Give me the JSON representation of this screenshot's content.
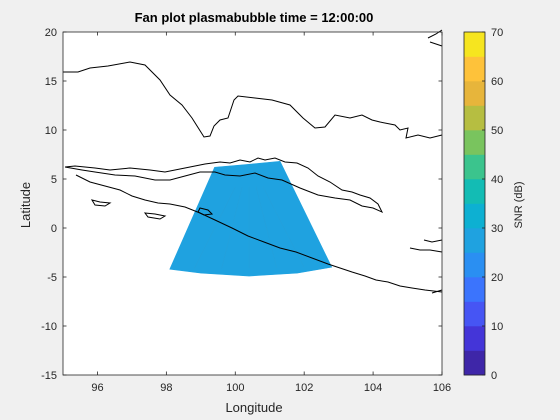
{
  "chart_data": {
    "type": "heatmap",
    "title": "Fan plot plasmabubble time = 12:00:00",
    "xlabel": "Longitude",
    "ylabel": "Latitude",
    "xlim": [
      95,
      106
    ],
    "ylim": [
      -15,
      20
    ],
    "xticks": [
      96,
      98,
      100,
      102,
      104,
      106
    ],
    "yticks": [
      -15,
      -10,
      -5,
      0,
      5,
      10,
      15,
      20
    ],
    "fan": {
      "origin": [
        100.4,
        7
      ],
      "outer_arc": [
        [
          98.1,
          -4.2
        ],
        [
          99.0,
          -4.6
        ],
        [
          100.4,
          -4.9
        ],
        [
          101.8,
          -4.6
        ],
        [
          102.8,
          -4.0
        ]
      ],
      "inner_edge": [
        [
          99.4,
          6.2
        ],
        [
          100.4,
          6.5
        ],
        [
          101.3,
          6.8
        ]
      ],
      "dominant_value_db": 27
    },
    "colorbar": {
      "label": "SNR (dB)",
      "ticks": [
        0,
        10,
        20,
        30,
        40,
        50,
        60,
        70
      ],
      "range": [
        0,
        70
      ],
      "levels": 14,
      "colormap": "parula"
    },
    "coastline_color": "#000000"
  }
}
